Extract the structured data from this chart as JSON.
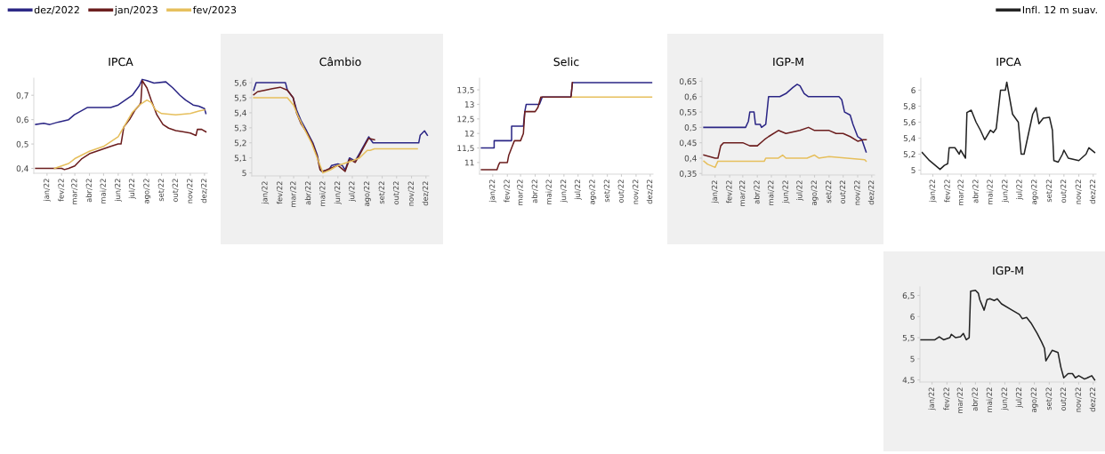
{
  "chart_data": [
    {
      "type": "line",
      "title": "IPCA",
      "legend": "top left",
      "line_style": "solid",
      "marker": "none",
      "xlim": [
        "2021-12-04",
        "2022-12-07"
      ],
      "xticks": [
        {
          "value": "2022-01-01",
          "label": "jan/22"
        },
        {
          "value": "2022-02-01",
          "label": "fev/22"
        },
        {
          "value": "2022-03-01",
          "label": "mar/22"
        },
        {
          "value": "2022-04-01",
          "label": "abr/22"
        },
        {
          "value": "2022-05-01",
          "label": "mai/22"
        },
        {
          "value": "2022-06-01",
          "label": "jun/22"
        },
        {
          "value": "2022-07-01",
          "label": "jul/22"
        },
        {
          "value": "2022-08-01",
          "label": "ago/22"
        },
        {
          "value": "2022-09-01",
          "label": "set/22"
        },
        {
          "value": "2022-10-01",
          "label": "out/22"
        },
        {
          "value": "2022-11-01",
          "label": "nov/22"
        },
        {
          "value": "2022-12-01",
          "label": "dez/22"
        }
      ],
      "ylim": [
        0.38,
        0.77
      ],
      "yticks": [
        {
          "value": 0.4,
          "label": "0,4"
        },
        {
          "value": 0.5,
          "label": "0,5"
        },
        {
          "value": 0.6,
          "label": "0,6"
        },
        {
          "value": 0.7,
          "label": "0,7"
        }
      ],
      "series": [
        {
          "name": "dez/2022",
          "color": "#2b2685",
          "x": [
            "2021-12-08",
            "2021-12-25",
            "2022-01-07",
            "2022-01-25",
            "2022-02-16",
            "2022-02-28",
            "2022-03-28",
            "2022-05-16",
            "2022-06-01",
            "2022-06-16",
            "2022-07-01",
            "2022-07-16",
            "2022-07-22",
            "2022-08-01",
            "2022-08-16",
            "2022-09-10",
            "2022-09-25",
            "2022-10-10",
            "2022-10-22",
            "2022-11-07",
            "2022-11-19",
            "2022-12-01",
            "2022-12-04"
          ],
          "values": [
            0.58,
            0.585,
            0.58,
            0.59,
            0.6,
            0.62,
            0.65,
            0.65,
            0.66,
            0.68,
            0.7,
            0.74,
            0.765,
            0.76,
            0.75,
            0.755,
            0.73,
            0.7,
            0.68,
            0.66,
            0.655,
            0.645,
            0.625
          ]
        },
        {
          "name": "jan/2023",
          "color": "#6b1d1d",
          "x": [
            "2021-12-08",
            "2022-02-01",
            "2022-02-07",
            "2022-02-16",
            "2022-03-01",
            "2022-03-16",
            "2022-04-01",
            "2022-04-16",
            "2022-05-01",
            "2022-05-16",
            "2022-06-01",
            "2022-06-07",
            "2022-06-13",
            "2022-06-25",
            "2022-07-07",
            "2022-07-16",
            "2022-07-19",
            "2022-07-22",
            "2022-08-01",
            "2022-08-10",
            "2022-08-22",
            "2022-09-04",
            "2022-09-16",
            "2022-10-01",
            "2022-10-16",
            "2022-11-01",
            "2022-11-13",
            "2022-11-16",
            "2022-11-25",
            "2022-12-04"
          ],
          "values": [
            0.4,
            0.4,
            0.395,
            0.4,
            0.41,
            0.44,
            0.46,
            0.47,
            0.48,
            0.49,
            0.5,
            0.5,
            0.57,
            0.6,
            0.64,
            0.66,
            0.67,
            0.76,
            0.73,
            0.68,
            0.62,
            0.58,
            0.565,
            0.555,
            0.55,
            0.545,
            0.535,
            0.56,
            0.56,
            0.55
          ]
        },
        {
          "name": "fev/2023",
          "color": "#e6bf5c",
          "x": [
            "2022-01-17",
            "2022-02-01",
            "2022-02-16",
            "2022-03-01",
            "2022-04-01",
            "2022-05-01",
            "2022-06-01",
            "2022-06-16",
            "2022-07-01",
            "2022-07-16",
            "2022-08-01",
            "2022-08-10",
            "2022-08-19",
            "2022-09-01",
            "2022-10-01",
            "2022-11-01",
            "2022-11-19",
            "2022-12-01"
          ],
          "values": [
            0.4,
            0.41,
            0.42,
            0.44,
            0.47,
            0.49,
            0.53,
            0.58,
            0.63,
            0.66,
            0.68,
            0.67,
            0.64,
            0.625,
            0.62,
            0.625,
            0.635,
            0.64
          ]
        }
      ]
    },
    {
      "type": "line",
      "title": "Câmbio",
      "line_style": "solid",
      "marker": "none",
      "xlim": [
        "2021-12-04",
        "2022-12-07"
      ],
      "xticks": [
        {
          "value": "2022-01-01",
          "label": "jan/22"
        },
        {
          "value": "2022-02-01",
          "label": "fev/22"
        },
        {
          "value": "2022-03-01",
          "label": "mar/22"
        },
        {
          "value": "2022-04-01",
          "label": "abr/22"
        },
        {
          "value": "2022-05-01",
          "label": "mai/22"
        },
        {
          "value": "2022-06-01",
          "label": "jun/22"
        },
        {
          "value": "2022-07-01",
          "label": "jul/22"
        },
        {
          "value": "2022-08-01",
          "label": "ago/22"
        },
        {
          "value": "2022-09-01",
          "label": "set/22"
        },
        {
          "value": "2022-10-01",
          "label": "out/22"
        },
        {
          "value": "2022-11-01",
          "label": "nov/22"
        },
        {
          "value": "2022-12-01",
          "label": "dez/22"
        }
      ],
      "ylim": [
        4.98,
        5.63
      ],
      "yticks": [
        5,
        {
          "value": 5.1,
          "label": "5,1"
        },
        {
          "value": 5.2,
          "label": "5,2"
        },
        {
          "value": 5.3,
          "label": "5,3"
        },
        {
          "value": 5.4,
          "label": "5,4"
        },
        {
          "value": 5.5,
          "label": "5,5"
        },
        {
          "value": 5.6,
          "label": "5,6"
        }
      ],
      "series": [
        {
          "color": "#2b2685",
          "x": [
            "2021-12-08",
            "2021-12-13",
            "2022-02-12",
            "2022-02-16",
            "2022-02-28",
            "2022-03-07",
            "2022-03-16",
            "2022-03-28",
            "2022-04-10",
            "2022-04-19",
            "2022-04-25",
            "2022-04-28",
            "2022-05-13",
            "2022-05-19",
            "2022-06-01",
            "2022-06-10",
            "2022-06-16",
            "2022-06-25",
            "2022-07-07",
            "2022-07-16",
            "2022-07-28",
            "2022-08-04",
            "2022-08-13",
            "2022-11-16",
            "2022-11-19",
            "2022-11-28",
            "2022-12-04"
          ],
          "values": [
            5.55,
            5.6,
            5.6,
            5.55,
            5.5,
            5.42,
            5.35,
            5.28,
            5.2,
            5.12,
            5.03,
            5.01,
            5.02,
            5.05,
            5.06,
            5.05,
            5.02,
            5.1,
            5.08,
            5.13,
            5.2,
            5.24,
            5.2,
            5.2,
            5.25,
            5.28,
            5.25
          ]
        },
        {
          "color": "#6b1d1d",
          "x": [
            "2021-12-08",
            "2021-12-16",
            "2022-01-01",
            "2022-01-16",
            "2022-02-01",
            "2022-02-16",
            "2022-02-28",
            "2022-03-07",
            "2022-03-16",
            "2022-03-28",
            "2022-04-10",
            "2022-04-19",
            "2022-04-25",
            "2022-05-01",
            "2022-05-16",
            "2022-06-01",
            "2022-06-16",
            "2022-06-25",
            "2022-07-07",
            "2022-07-16",
            "2022-07-28",
            "2022-08-04",
            "2022-08-16"
          ],
          "values": [
            5.52,
            5.54,
            5.55,
            5.56,
            5.57,
            5.55,
            5.5,
            5.4,
            5.33,
            5.27,
            5.19,
            5.11,
            5.02,
            5.01,
            5.03,
            5.05,
            5.01,
            5.09,
            5.07,
            5.12,
            5.19,
            5.23,
            5.22
          ]
        },
        {
          "color": "#e6bf5c",
          "x": [
            "2021-12-08",
            "2022-02-16",
            "2022-03-01",
            "2022-03-10",
            "2022-03-22",
            "2022-04-07",
            "2022-04-19",
            "2022-05-01",
            "2022-05-16",
            "2022-06-01",
            "2022-07-01",
            "2022-07-16",
            "2022-08-01",
            "2022-08-07",
            "2022-08-16",
            "2022-11-13"
          ],
          "values": [
            5.5,
            5.5,
            5.45,
            5.38,
            5.3,
            5.2,
            5.1,
            5.0,
            5.02,
            5.05,
            5.08,
            5.1,
            5.15,
            5.15,
            5.16,
            5.16
          ]
        }
      ]
    },
    {
      "type": "line",
      "title": "Selic",
      "line_style": "solid",
      "marker": "none",
      "xlim": [
        "2021-12-04",
        "2022-12-07"
      ],
      "xticks": [
        {
          "value": "2022-01-01",
          "label": "jan/22"
        },
        {
          "value": "2022-02-01",
          "label": "fev/22"
        },
        {
          "value": "2022-03-01",
          "label": "mar/22"
        },
        {
          "value": "2022-04-01",
          "label": "abr/22"
        },
        {
          "value": "2022-05-01",
          "label": "mai/22"
        },
        {
          "value": "2022-06-01",
          "label": "jun/22"
        },
        {
          "value": "2022-07-01",
          "label": "jul/22"
        },
        {
          "value": "2022-08-01",
          "label": "ago/22"
        },
        {
          "value": "2022-09-01",
          "label": "set/22"
        },
        {
          "value": "2022-10-01",
          "label": "out/22"
        },
        {
          "value": "2022-11-01",
          "label": "nov/22"
        },
        {
          "value": "2022-12-01",
          "label": "dez/22"
        }
      ],
      "ylim": [
        10.6,
        13.9
      ],
      "yticks": [
        11,
        {
          "value": 11.5,
          "label": "11,5"
        },
        12,
        {
          "value": 12.5,
          "label": "12,5"
        },
        13,
        {
          "value": 13.5,
          "label": "13,5"
        }
      ],
      "series": [
        {
          "color": "#2b2685",
          "x": [
            "2021-12-08",
            "2022-01-04",
            "2022-01-04",
            "2022-02-10",
            "2022-02-10",
            "2022-03-07",
            "2022-03-10",
            "2022-03-13",
            "2022-04-10",
            "2022-04-16",
            "2022-06-16",
            "2022-06-19",
            "2022-12-04"
          ],
          "values": [
            11.5,
            11.5,
            11.75,
            11.75,
            12.25,
            12.25,
            12.75,
            13.0,
            13.0,
            13.25,
            13.25,
            13.75,
            13.75
          ]
        },
        {
          "color": "#6b1d1d",
          "x": [
            "2021-12-08",
            "2022-01-10",
            "2022-01-13",
            "2022-01-16",
            "2022-02-01",
            "2022-02-04",
            "2022-02-10",
            "2022-02-16",
            "2022-03-01",
            "2022-03-07",
            "2022-03-10",
            "2022-04-01",
            "2022-04-07",
            "2022-04-13",
            "2022-06-16",
            "2022-06-19"
          ],
          "values": [
            10.75,
            10.75,
            10.9,
            11.0,
            11.0,
            11.25,
            11.5,
            11.75,
            11.75,
            12.0,
            12.75,
            12.75,
            12.9,
            13.25,
            13.25,
            13.75
          ]
        },
        {
          "color": "#e6bf5c",
          "x": [
            "2022-06-19",
            "2022-12-04"
          ],
          "values": [
            13.25,
            13.25
          ]
        }
      ]
    },
    {
      "type": "line",
      "title": "IGP-M",
      "line_style": "solid",
      "marker": "none",
      "xlim": [
        "2021-12-04",
        "2022-12-07"
      ],
      "xticks": [
        {
          "value": "2022-01-01",
          "label": "jan/22"
        },
        {
          "value": "2022-02-01",
          "label": "fev/22"
        },
        {
          "value": "2022-03-01",
          "label": "mar/22"
        },
        {
          "value": "2022-04-01",
          "label": "abr/22"
        },
        {
          "value": "2022-05-01",
          "label": "mai/22"
        },
        {
          "value": "2022-06-01",
          "label": "jun/22"
        },
        {
          "value": "2022-07-01",
          "label": "jul/22"
        },
        {
          "value": "2022-08-01",
          "label": "ago/22"
        },
        {
          "value": "2022-09-01",
          "label": "set/22"
        },
        {
          "value": "2022-10-01",
          "label": "out/22"
        },
        {
          "value": "2022-11-01",
          "label": "nov/22"
        },
        {
          "value": "2022-12-01",
          "label": "dez/22"
        }
      ],
      "ylim": [
        0.345,
        0.66
      ],
      "yticks": [
        {
          "value": 0.35,
          "label": "0,35"
        },
        {
          "value": 0.4,
          "label": "0,4"
        },
        {
          "value": 0.45,
          "label": "0,45"
        },
        {
          "value": 0.5,
          "label": "0,5"
        },
        {
          "value": 0.55,
          "label": "0,55"
        },
        {
          "value": 0.6,
          "label": "0,6"
        },
        {
          "value": 0.65,
          "label": "0,65"
        }
      ],
      "series": [
        {
          "color": "#2b2685",
          "x": [
            "2021-12-08",
            "2022-03-07",
            "2022-03-13",
            "2022-03-16",
            "2022-03-25",
            "2022-03-28",
            "2022-04-07",
            "2022-04-10",
            "2022-04-19",
            "2022-04-25",
            "2022-05-19",
            "2022-06-01",
            "2022-06-16",
            "2022-06-25",
            "2022-07-01",
            "2022-07-10",
            "2022-07-19",
            "2022-09-22",
            "2022-09-28",
            "2022-10-04",
            "2022-10-16",
            "2022-10-22",
            "2022-11-01",
            "2022-11-10",
            "2022-11-19"
          ],
          "values": [
            0.5,
            0.5,
            0.52,
            0.55,
            0.55,
            0.51,
            0.51,
            0.5,
            0.51,
            0.6,
            0.6,
            0.61,
            0.63,
            0.64,
            0.635,
            0.61,
            0.6,
            0.6,
            0.59,
            0.55,
            0.54,
            0.51,
            0.47,
            0.46,
            0.42
          ]
        },
        {
          "color": "#6b1d1d",
          "x": [
            "2021-12-08",
            "2022-01-01",
            "2022-01-07",
            "2022-01-13",
            "2022-01-19",
            "2022-02-01",
            "2022-03-01",
            "2022-03-16",
            "2022-04-01",
            "2022-04-16",
            "2022-04-25",
            "2022-05-16",
            "2022-06-01",
            "2022-07-01",
            "2022-07-19",
            "2022-08-01",
            "2022-09-01",
            "2022-09-16",
            "2022-10-01",
            "2022-10-16",
            "2022-11-01",
            "2022-11-13",
            "2022-11-19"
          ],
          "values": [
            0.41,
            0.4,
            0.4,
            0.44,
            0.45,
            0.45,
            0.45,
            0.44,
            0.44,
            0.46,
            0.47,
            0.49,
            0.48,
            0.49,
            0.5,
            0.49,
            0.49,
            0.48,
            0.48,
            0.47,
            0.455,
            0.46,
            0.46
          ]
        },
        {
          "color": "#e6bf5c",
          "x": [
            "2021-12-08",
            "2021-12-16",
            "2022-01-01",
            "2022-01-07",
            "2022-02-01",
            "2022-04-16",
            "2022-04-19",
            "2022-05-16",
            "2022-05-25",
            "2022-06-01",
            "2022-07-16",
            "2022-08-01",
            "2022-08-10",
            "2022-09-01",
            "2022-11-16",
            "2022-11-19"
          ],
          "values": [
            0.39,
            0.38,
            0.37,
            0.39,
            0.39,
            0.39,
            0.4,
            0.4,
            0.41,
            0.4,
            0.4,
            0.41,
            0.4,
            0.405,
            0.395,
            0.39
          ]
        }
      ]
    },
    {
      "type": "line",
      "title": "IPCA",
      "legend": "top right",
      "line_style": "solid",
      "marker": "none",
      "xlim": [
        "2021-12-07",
        "2022-12-07"
      ],
      "xticks": [
        {
          "value": "2022-01-01",
          "label": "jan/22"
        },
        {
          "value": "2022-02-01",
          "label": "fev/22"
        },
        {
          "value": "2022-03-01",
          "label": "mar/22"
        },
        {
          "value": "2022-04-01",
          "label": "abr/22"
        },
        {
          "value": "2022-05-01",
          "label": "mai/22"
        },
        {
          "value": "2022-06-01",
          "label": "jun/22"
        },
        {
          "value": "2022-07-01",
          "label": "jul/22"
        },
        {
          "value": "2022-08-01",
          "label": "ago/22"
        },
        {
          "value": "2022-09-01",
          "label": "set/22"
        },
        {
          "value": "2022-10-01",
          "label": "out/22"
        },
        {
          "value": "2022-11-01",
          "label": "nov/22"
        },
        {
          "value": "2022-12-01",
          "label": "dez/22"
        }
      ],
      "ylim": [
        4.95,
        6.15
      ],
      "yticks": [
        5,
        {
          "value": 5.2,
          "label": "5,2"
        },
        {
          "value": 5.4,
          "label": "5,4"
        },
        {
          "value": 5.6,
          "label": "5,6"
        },
        {
          "value": 5.8,
          "label": "5,8"
        },
        6
      ],
      "series": [
        {
          "name": "Infl. 12 m suav.",
          "color": "#222222",
          "x": [
            "2021-12-10",
            "2021-12-25",
            "2022-01-10",
            "2022-01-16",
            "2022-01-25",
            "2022-02-01",
            "2022-02-04",
            "2022-02-16",
            "2022-02-25",
            "2022-02-28",
            "2022-03-10",
            "2022-03-13",
            "2022-03-22",
            "2022-04-01",
            "2022-04-10",
            "2022-04-19",
            "2022-05-01",
            "2022-05-07",
            "2022-05-13",
            "2022-05-16",
            "2022-05-22",
            "2022-06-01",
            "2022-06-04",
            "2022-06-10",
            "2022-06-16",
            "2022-06-28",
            "2022-07-04",
            "2022-07-10",
            "2022-07-19",
            "2022-07-28",
            "2022-08-04",
            "2022-08-10",
            "2022-08-19",
            "2022-09-01",
            "2022-09-07",
            "2022-09-10",
            "2022-09-19",
            "2022-09-28",
            "2022-10-01",
            "2022-10-10",
            "2022-11-01",
            "2022-11-16",
            "2022-11-22",
            "2022-12-04"
          ],
          "values": [
            5.22,
            5.12,
            5.04,
            5.01,
            5.06,
            5.08,
            5.28,
            5.28,
            5.2,
            5.25,
            5.15,
            5.72,
            5.75,
            5.6,
            5.5,
            5.38,
            5.5,
            5.47,
            5.52,
            5.68,
            6.0,
            6.0,
            6.1,
            5.9,
            5.7,
            5.6,
            5.2,
            5.2,
            5.45,
            5.7,
            5.78,
            5.58,
            5.65,
            5.66,
            5.5,
            5.12,
            5.1,
            5.2,
            5.25,
            5.15,
            5.12,
            5.2,
            5.28,
            5.22
          ]
        }
      ]
    },
    {
      "type": "line",
      "title": "IGP-M",
      "line_style": "solid",
      "marker": "none",
      "xlim": [
        "2021-12-07",
        "2022-12-07"
      ],
      "xticks": [
        {
          "value": "2022-01-01",
          "label": "jan/22"
        },
        {
          "value": "2022-02-01",
          "label": "fev/22"
        },
        {
          "value": "2022-03-01",
          "label": "mar/22"
        },
        {
          "value": "2022-04-01",
          "label": "abr/22"
        },
        {
          "value": "2022-05-01",
          "label": "mai/22"
        },
        {
          "value": "2022-06-01",
          "label": "jun/22"
        },
        {
          "value": "2022-07-01",
          "label": "jul/22"
        },
        {
          "value": "2022-08-01",
          "label": "ago/22"
        },
        {
          "value": "2022-09-01",
          "label": "set/22"
        },
        {
          "value": "2022-10-01",
          "label": "out/22"
        },
        {
          "value": "2022-11-01",
          "label": "nov/22"
        },
        {
          "value": "2022-12-01",
          "label": "dez/22"
        }
      ],
      "ylim": [
        4.45,
        6.7
      ],
      "yticks": [
        {
          "value": 4.5,
          "label": "4,5"
        },
        5,
        {
          "value": 5.5,
          "label": "5,5"
        },
        6,
        {
          "value": 6.5,
          "label": "6,5"
        }
      ],
      "series": [
        {
          "color": "#222222",
          "x": [
            "2021-12-08",
            "2022-01-07",
            "2022-01-16",
            "2022-01-25",
            "2022-02-07",
            "2022-02-10",
            "2022-02-19",
            "2022-03-01",
            "2022-03-07",
            "2022-03-13",
            "2022-03-19",
            "2022-03-22",
            "2022-04-01",
            "2022-04-07",
            "2022-04-10",
            "2022-04-19",
            "2022-04-25",
            "2022-05-01",
            "2022-05-10",
            "2022-05-16",
            "2022-05-25",
            "2022-06-16",
            "2022-07-01",
            "2022-07-07",
            "2022-07-16",
            "2022-07-25",
            "2022-08-07",
            "2022-08-16",
            "2022-08-22",
            "2022-08-25",
            "2022-09-07",
            "2022-09-19",
            "2022-09-25",
            "2022-10-01",
            "2022-10-10",
            "2022-10-19",
            "2022-10-25",
            "2022-11-01",
            "2022-11-13",
            "2022-11-19",
            "2022-11-28",
            "2022-12-04"
          ],
          "values": [
            5.45,
            5.45,
            5.52,
            5.45,
            5.5,
            5.58,
            5.5,
            5.52,
            5.6,
            5.45,
            5.5,
            6.6,
            6.62,
            6.55,
            6.4,
            6.15,
            6.4,
            6.42,
            6.38,
            6.42,
            6.3,
            6.15,
            6.05,
            5.95,
            5.98,
            5.85,
            5.6,
            5.4,
            5.25,
            4.95,
            5.2,
            5.15,
            4.8,
            4.55,
            4.65,
            4.65,
            4.55,
            4.6,
            4.52,
            4.55,
            4.6,
            4.5
          ]
        }
      ]
    }
  ]
}
